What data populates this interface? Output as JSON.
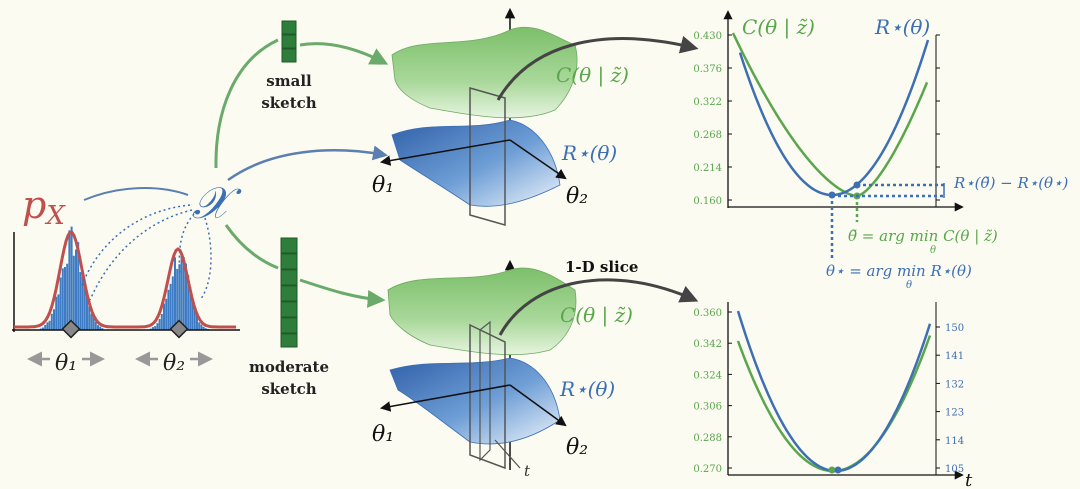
{
  "colors": {
    "background": "#fbfbf1",
    "green": "#5aa64c",
    "green_dark": "#2e7d3a",
    "blue": "#3d6fb5",
    "blue_dark": "#2b5aa0",
    "red": "#c0504d",
    "gray": "#888888",
    "black": "#222222"
  },
  "left": {
    "density_label": "p_X",
    "dataset_symbol": "𝒳",
    "theta1": "θ₁",
    "theta2": "θ₂"
  },
  "sketch": {
    "small_label_1": "small",
    "small_label_2": "sketch",
    "moderate_label_1": "moderate",
    "moderate_label_2": "sketch"
  },
  "surfaces": {
    "top_green_label": "C(θ | z̃)",
    "top_blue_label": "R⋆(θ)",
    "top_axis1": "θ₁",
    "top_axis2": "θ₂",
    "bottom_green_label": "C(θ | z̃)",
    "bottom_blue_label": "R⋆(θ)",
    "bottom_axis1": "θ₁",
    "bottom_axis2": "θ₂",
    "slice_axis": "t",
    "slice_label": "1-D slice"
  },
  "top_plot": {
    "green_label": "C(θ | z̃)",
    "blue_label": "R⋆(θ)",
    "gap_label": "R⋆(θ̃) − R⋆(θ⋆)",
    "theta_tilde_label": "θ̃ = arg min C(θ | z̃)",
    "theta_tilde_sub": "θ",
    "theta_star_label": "θ⋆ = arg min R⋆(θ)",
    "theta_star_sub": "θ",
    "y_ticks": [
      "0.430",
      "0.376",
      "0.322",
      "0.268",
      "0.214",
      "0.160"
    ]
  },
  "bottom_plot": {
    "y_ticks_left": [
      "0.360",
      "0.342",
      "0.324",
      "0.306",
      "0.288",
      "0.270"
    ],
    "y_ticks_right": [
      "150",
      "141",
      "132",
      "123",
      "114",
      "105"
    ],
    "x_label": "t"
  }
}
